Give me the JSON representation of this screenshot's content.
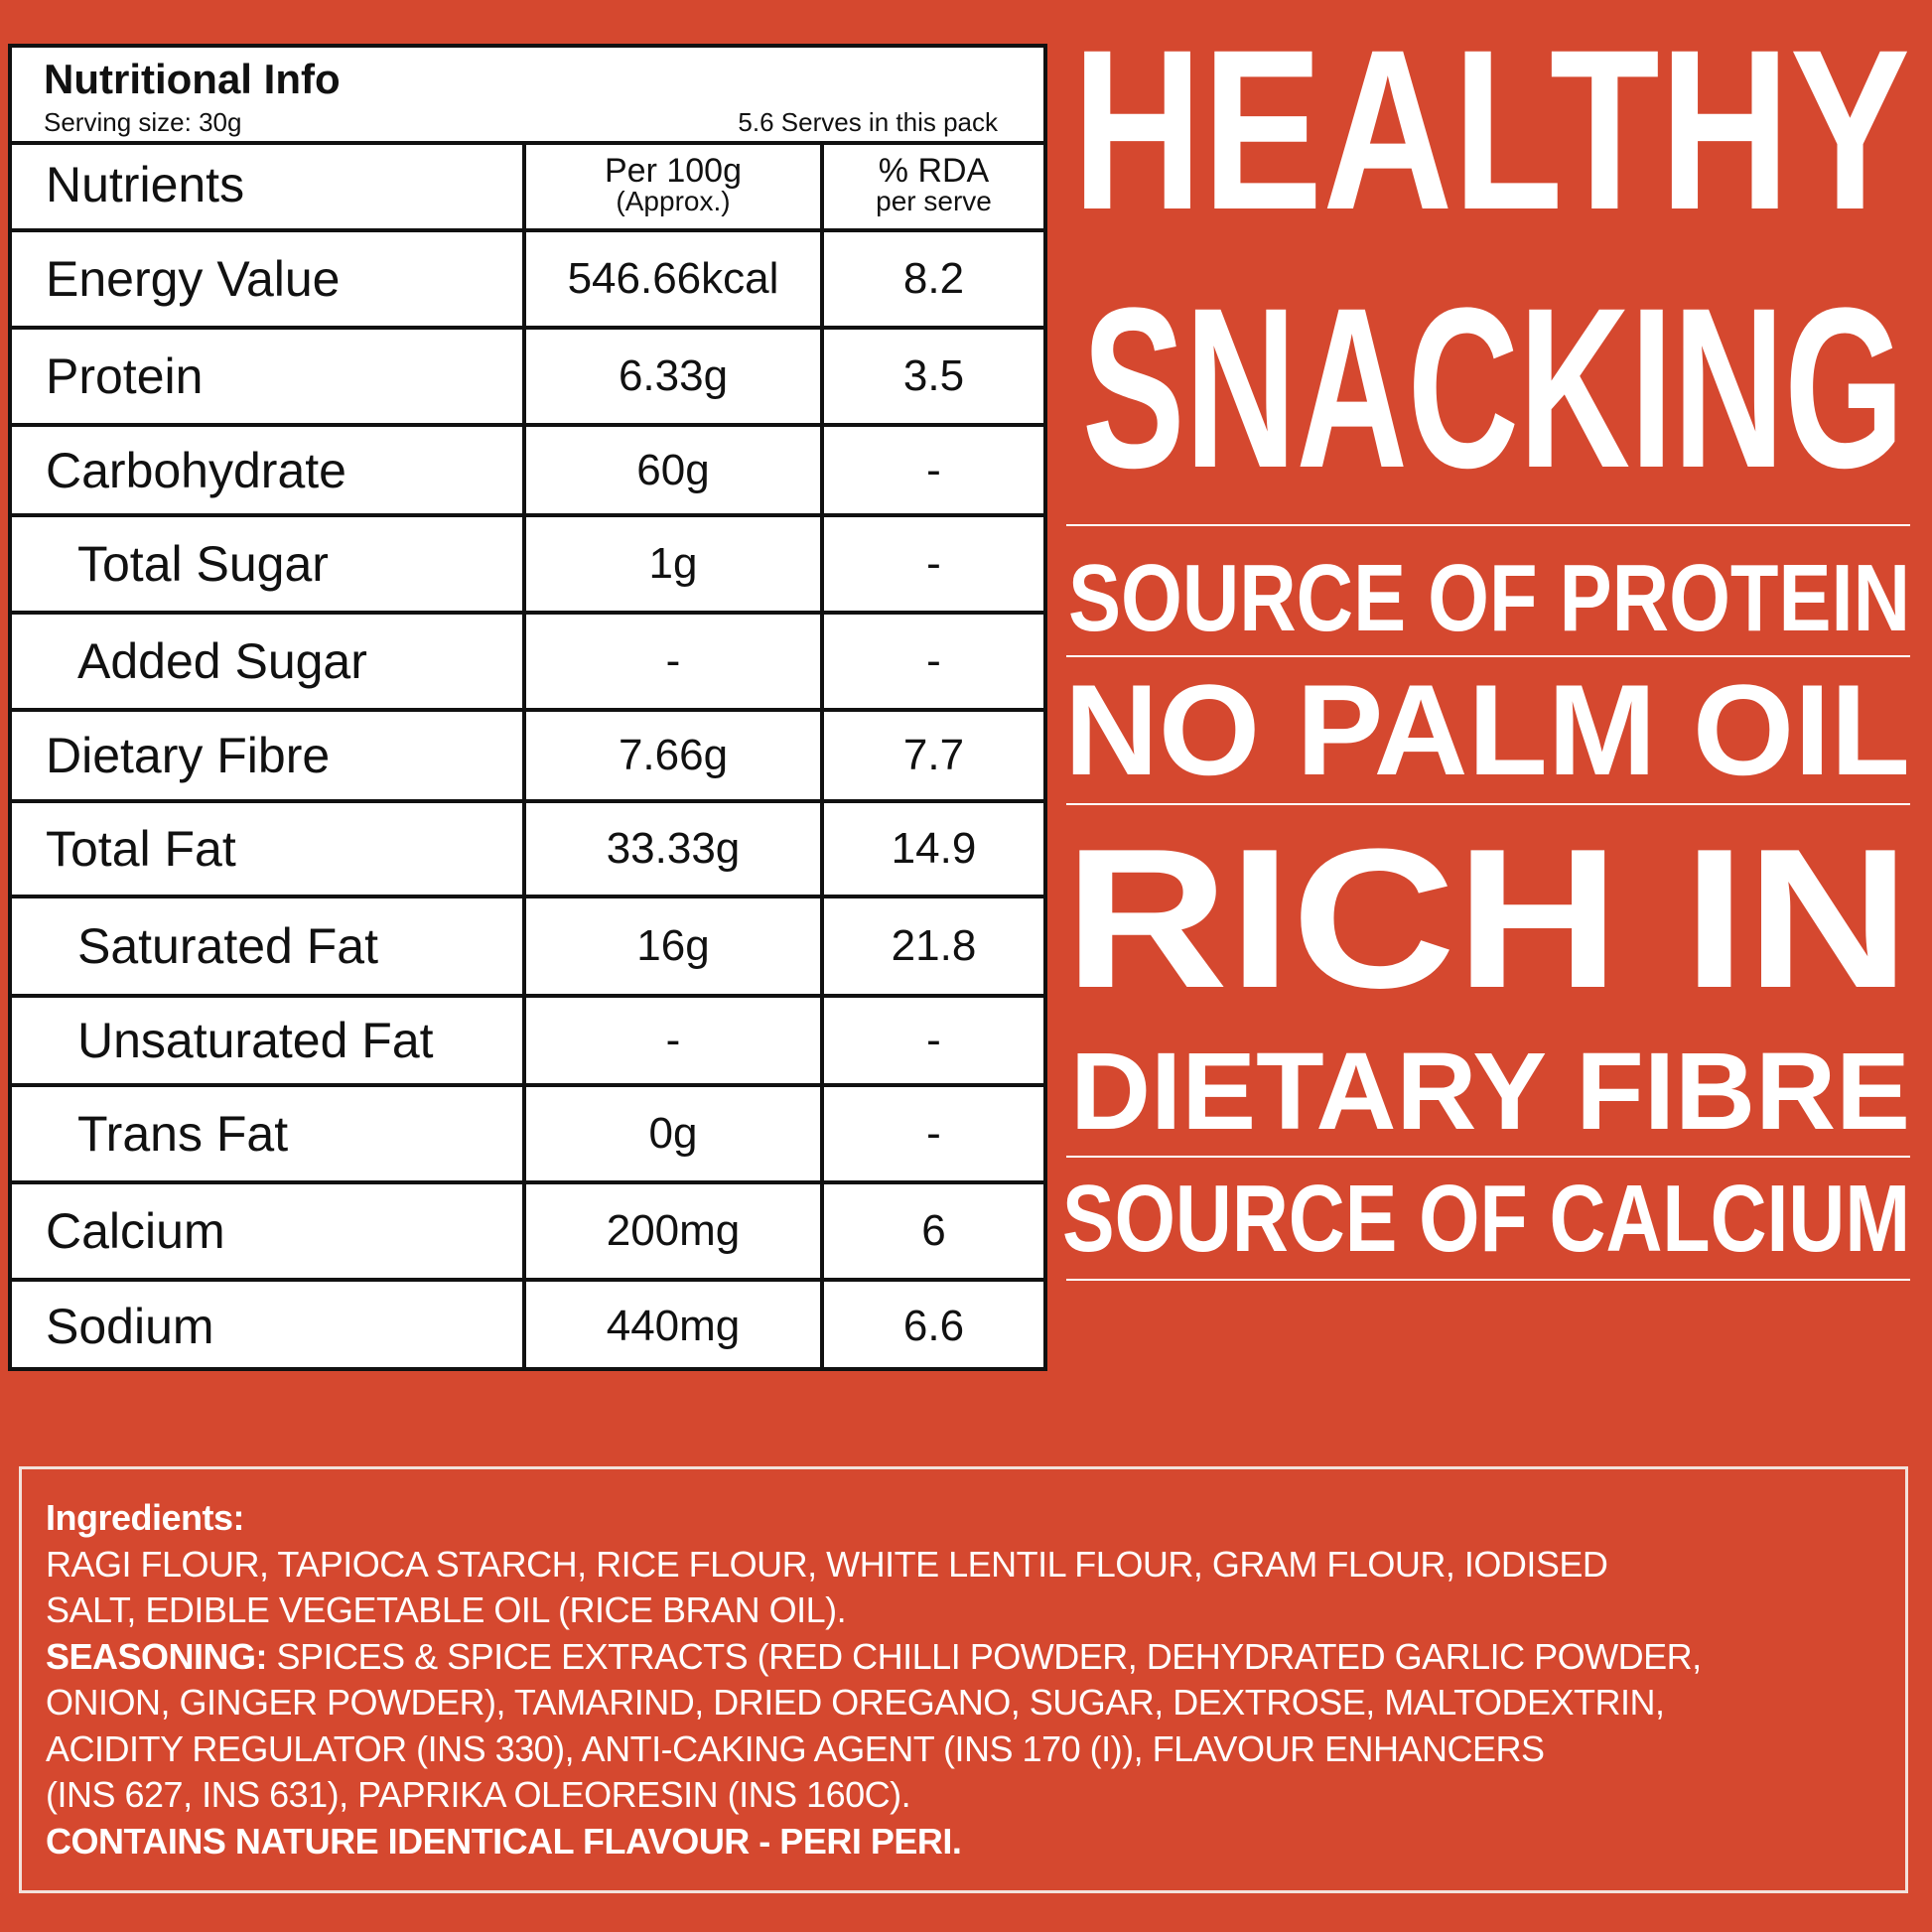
{
  "colors": {
    "background": "#d5482f",
    "table_bg": "#ffffff",
    "text_light": "#ffffff"
  },
  "nutrition": {
    "title": "Nutritional Info",
    "serving_size": "Serving  size: 30g",
    "serves": "5.6 Serves in this pack",
    "headers": {
      "nutrients": "Nutrients",
      "per100": "Per 100g",
      "per100_sub": "(Approx.)",
      "rda": "% RDA",
      "rda_sub": "per serve"
    },
    "rows": [
      {
        "name": "Energy Value",
        "per100": "546.66kcal",
        "rda": "8.2"
      },
      {
        "name": "Protein",
        "per100": "6.33g",
        "rda": "3.5"
      },
      {
        "name": "Carbohydrate",
        "per100": "60g",
        "rda": "-"
      },
      {
        "name": "Total Sugar",
        "per100": "1g",
        "rda": "-"
      },
      {
        "name": "Added Sugar",
        "per100": "-",
        "rda": "-"
      },
      {
        "name": "Dietary Fibre",
        "per100": "7.66g",
        "rda": "7.7"
      },
      {
        "name": "Total Fat",
        "per100": "33.33g",
        "rda": "14.9"
      },
      {
        "name": "Saturated Fat",
        "per100": "16g",
        "rda": "21.8"
      },
      {
        "name": "Unsaturated Fat",
        "per100": "-",
        "rda": "-"
      },
      {
        "name": "Trans Fat",
        "per100": "0g",
        "rda": "-"
      },
      {
        "name": "Calcium",
        "per100": "200mg",
        "rda": "6"
      },
      {
        "name": "Sodium",
        "per100": "440mg",
        "rda": "6.6"
      }
    ]
  },
  "claims": {
    "healthy": "HEALTHY",
    "snacking": "SNACKING",
    "protein": "SOURCE OF PROTEIN",
    "palm": "NO PALM OIL",
    "rich": "RICH IN",
    "fibre": "DIETARY FIBRE",
    "calcium": "SOURCE OF CALCIUM"
  },
  "ingredients": {
    "heading": "Ingredients:",
    "line1": "RAGI FLOUR, TAPIOCA STARCH, RICE FLOUR, WHITE LENTIL FLOUR, GRAM FLOUR, IODISED",
    "line2": "SALT, EDIBLE VEGETABLE OIL (RICE BRAN OIL).",
    "seasoning_label": "SEASONING:",
    "line3": " SPICES & SPICE EXTRACTS (RED CHILLI POWDER, DEHYDRATED GARLIC POWDER,",
    "line4": "ONION, GINGER POWDER), TAMARIND, DRIED OREGANO, SUGAR, DEXTROSE, MALTODEXTRIN,",
    "line5": "ACIDITY REGULATOR (INS 330), ANTI-CAKING AGENT (INS 170 (I)), FLAVOUR ENHANCERS",
    "line6": "(INS 627, INS 631), PAPRIKA OLEORESIN (INS 160C).",
    "contains": "CONTAINS NATURE IDENTICAL FLAVOUR - PERI PERI."
  }
}
